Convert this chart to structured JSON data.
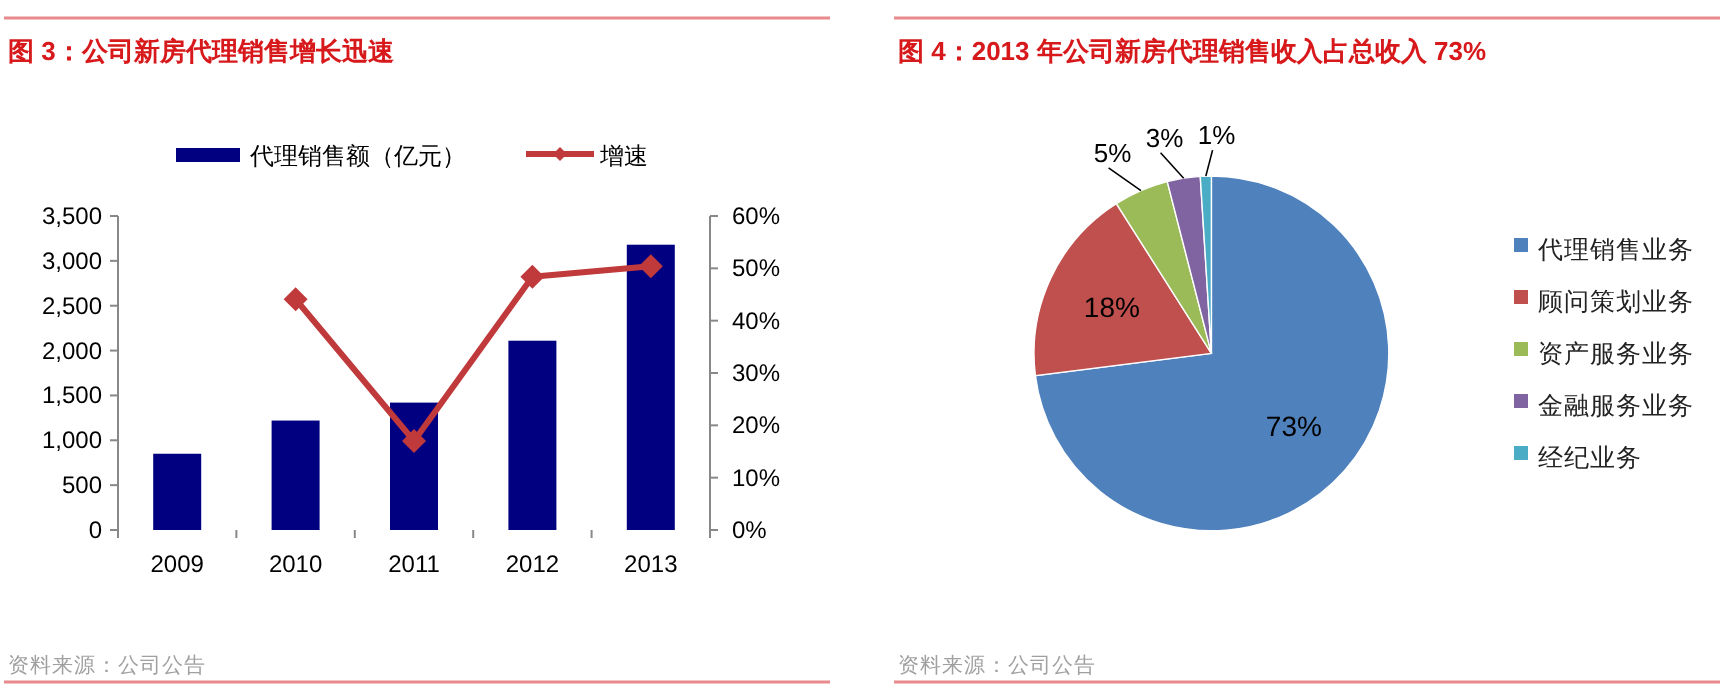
{
  "chart_data": [
    {
      "type": "bar",
      "title": "图 3：公司新房代理销售增长迅速",
      "categories": [
        "2009",
        "2010",
        "2011",
        "2012",
        "2013"
      ],
      "series": [
        {
          "name": "代理销售额（亿元）",
          "type": "bar",
          "color": "#000080",
          "values": [
            850,
            1220,
            1420,
            2110,
            3180
          ]
        },
        {
          "name": "增速",
          "type": "line",
          "axis": "y2",
          "color": "#c0393b",
          "marker": "diamond",
          "values": [
            null,
            44.1,
            17.0,
            48.4,
            50.4
          ]
        }
      ],
      "ylim": [
        0,
        3500
      ],
      "yticks": [
        {
          "value": 0,
          "label": "0"
        },
        {
          "value": 500,
          "label": "500"
        },
        {
          "value": 1000,
          "label": "1,000"
        },
        {
          "value": 1500,
          "label": "1,500"
        },
        {
          "value": 2000,
          "label": "2,000"
        },
        {
          "value": 2500,
          "label": "2,500"
        },
        {
          "value": 3000,
          "label": "3,000"
        },
        {
          "value": 3500,
          "label": "3,500"
        }
      ],
      "y2lim": [
        0,
        60
      ],
      "y2ticks": [
        {
          "value": 0,
          "label": "0%"
        },
        {
          "value": 10,
          "label": "10%"
        },
        {
          "value": 20,
          "label": "20%"
        },
        {
          "value": 30,
          "label": "30%"
        },
        {
          "value": 40,
          "label": "40%"
        },
        {
          "value": 50,
          "label": "50%"
        },
        {
          "value": 60,
          "label": "60%"
        }
      ],
      "legend": "top",
      "annotations": [
        "资料来源：公司公告"
      ]
    },
    {
      "type": "pie",
      "title": "图 4：2013 年公司新房代理销售收入占总收入 73%",
      "categories": [
        "代理销售业务",
        "顾问策划业务",
        "资产服务业务",
        "金融服务业务",
        "经纪业务"
      ],
      "values": [
        73,
        18,
        5,
        3,
        1
      ],
      "colors": [
        "#4f81bd",
        "#c0504d",
        "#9bbb59",
        "#8064a2",
        "#4bacc6"
      ],
      "value_labels": [
        "73%",
        "18%",
        "5%",
        "3%",
        "1%"
      ],
      "legend": "right",
      "annotations": [
        "资料来源：公司公告"
      ]
    }
  ]
}
